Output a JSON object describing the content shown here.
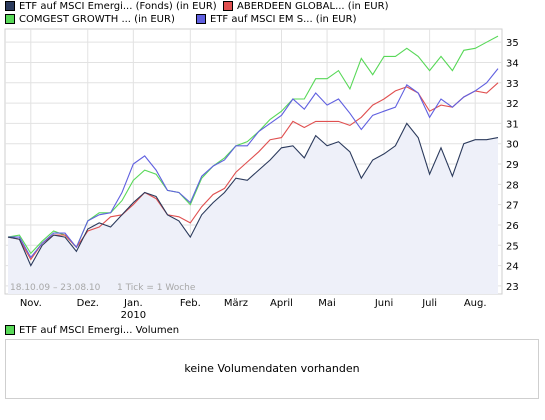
{
  "legend": [
    {
      "label": "ETF auf MSCI Emergi... (Fonds) (in EUR)",
      "color": "#2b3a5c"
    },
    {
      "label": "ABERDEEN GLOBAL... (in EUR)",
      "color": "#e05050"
    },
    {
      "label": "COMGEST GROWTH ... (in EUR)",
      "color": "#58d858"
    },
    {
      "label": "ETF auf MSCI EM S... (in EUR)",
      "color": "#6060e0"
    }
  ],
  "date_range": "18.10.09 – 23.08.10",
  "tick_note": "1 Tick = 1 Woche",
  "volume": {
    "legend_label": "ETF auf MSCI Emergi... Volumen",
    "legend_color": "#58d858",
    "message": "keine Volumendaten vorhanden"
  },
  "chart_data": {
    "type": "line",
    "ylim": [
      22.6,
      35.6
    ],
    "yticks": [
      "23",
      "24",
      "25",
      "26",
      "27",
      "28",
      "29",
      "30",
      "31",
      "32",
      "33",
      "34",
      "35"
    ],
    "xticks": [
      {
        "label": "Nov.",
        "week": 2
      },
      {
        "label": "Dez.",
        "week": 7
      },
      {
        "label": "Jan.",
        "week": 11
      },
      {
        "label": "2010",
        "week": 11,
        "row": 2
      },
      {
        "label": "Feb.",
        "week": 16
      },
      {
        "label": "März",
        "week": 20
      },
      {
        "label": "April",
        "week": 24
      },
      {
        "label": "Mai",
        "week": 28
      },
      {
        "label": "Juni",
        "week": 33
      },
      {
        "label": "Juli",
        "week": 37
      },
      {
        "label": "Aug.",
        "week": 41
      }
    ],
    "weeks": 44,
    "series": [
      {
        "name": "ETF auf MSCI Emergi... (Fonds) (in EUR)",
        "color": "#2b3a5c",
        "fill": true,
        "values": [
          25.4,
          25.3,
          24.0,
          25.0,
          25.5,
          25.4,
          24.7,
          25.8,
          26.1,
          25.9,
          26.5,
          27.1,
          27.6,
          27.4,
          26.5,
          26.2,
          25.4,
          26.5,
          27.1,
          27.6,
          28.3,
          28.2,
          28.7,
          29.2,
          29.8,
          29.9,
          29.3,
          30.4,
          29.9,
          30.1,
          29.6,
          28.3,
          29.2,
          29.5,
          29.9,
          31.0,
          30.3,
          28.5,
          29.8,
          28.4,
          30.0,
          30.2,
          30.2,
          30.3
        ]
      },
      {
        "name": "ABERDEEN GLOBAL... (in EUR)",
        "color": "#e05050",
        "fill": false,
        "values": [
          25.4,
          25.3,
          24.3,
          25.1,
          25.5,
          25.5,
          24.9,
          25.7,
          25.9,
          26.4,
          26.5,
          27.0,
          27.6,
          27.3,
          26.5,
          26.4,
          26.1,
          26.9,
          27.5,
          27.8,
          28.6,
          29.1,
          29.6,
          30.2,
          30.3,
          31.1,
          30.8,
          31.1,
          31.1,
          31.1,
          30.9,
          31.3,
          31.9,
          32.2,
          32.6,
          32.8,
          32.5,
          31.6,
          31.9,
          31.8,
          32.3,
          32.6,
          32.5,
          33.0
        ]
      },
      {
        "name": "COMGEST GROWTH ... (in EUR)",
        "color": "#58d858",
        "fill": false,
        "values": [
          25.4,
          25.5,
          24.6,
          25.2,
          25.7,
          25.5,
          24.9,
          26.2,
          26.6,
          26.6,
          27.2,
          28.2,
          28.7,
          28.5,
          27.7,
          27.6,
          27.0,
          28.3,
          28.9,
          29.3,
          29.9,
          30.1,
          30.6,
          31.2,
          31.6,
          32.2,
          32.2,
          33.2,
          33.2,
          33.6,
          32.7,
          34.2,
          33.4,
          34.3,
          34.3,
          34.7,
          34.3,
          33.6,
          34.3,
          33.6,
          34.6,
          34.7,
          35.0,
          35.3
        ]
      },
      {
        "name": "ETF auf MSCI EM S... (in EUR)",
        "color": "#6060e0",
        "fill": false,
        "values": [
          25.4,
          25.4,
          24.4,
          25.1,
          25.6,
          25.6,
          24.9,
          26.2,
          26.5,
          26.6,
          27.6,
          29.0,
          29.4,
          28.7,
          27.7,
          27.6,
          27.1,
          28.4,
          28.9,
          29.2,
          29.9,
          29.9,
          30.6,
          31.0,
          31.4,
          32.2,
          31.7,
          32.5,
          31.9,
          32.2,
          31.5,
          30.7,
          31.4,
          31.6,
          31.8,
          32.9,
          32.5,
          31.3,
          32.2,
          31.8,
          32.3,
          32.6,
          33.0,
          33.7
        ]
      }
    ]
  }
}
